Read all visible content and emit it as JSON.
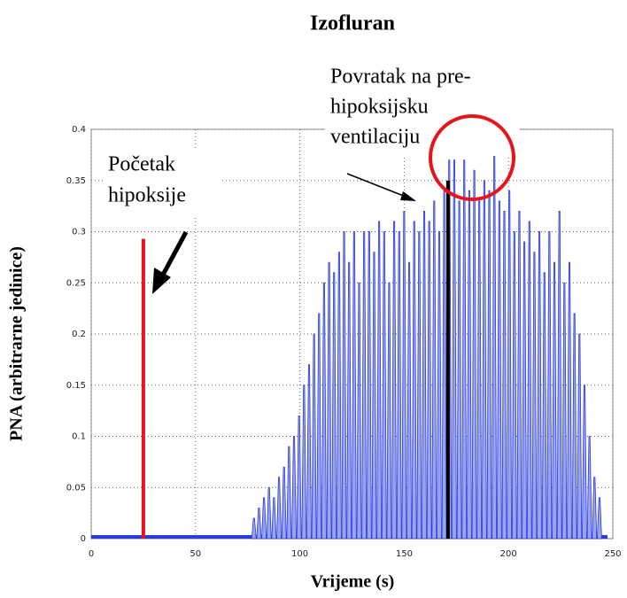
{
  "chart_data": {
    "type": "spikes",
    "title": "Izofluran",
    "xlabel": "Vrijeme (s)",
    "ylabel": "PNA (arbitrarne jedinice)",
    "xlim": [
      0,
      250
    ],
    "ylim": [
      0,
      0.4
    ],
    "xticks": [
      0,
      50,
      100,
      150,
      200,
      250
    ],
    "yticks": [
      0,
      0.05,
      0.1,
      0.15,
      0.2,
      0.25,
      0.3,
      0.35,
      0.4
    ],
    "grid": true,
    "color": "#2a3bd6",
    "x": [
      78,
      80.4,
      82.8,
      85.2,
      87.6,
      90,
      92.4,
      94.8,
      97.2,
      99.6,
      102,
      104.4,
      106.8,
      109.2,
      111.6,
      114,
      116.4,
      118.8,
      121.2,
      123.6,
      126,
      128.4,
      130.8,
      133.2,
      135.6,
      138,
      140.4,
      142.8,
      145.2,
      147.6,
      150,
      152.4,
      154.8,
      157.2,
      159.6,
      162,
      164.4,
      166.8,
      169.2,
      171.6,
      174,
      176.4,
      178.8,
      181.2,
      183.6,
      186,
      188.4,
      190.8,
      193.2,
      195.6,
      198,
      200.4,
      202.8,
      205.2,
      207.6,
      210,
      212.4,
      214.8,
      217.2,
      219.6,
      222,
      224.4,
      226.8,
      229.2,
      231.6,
      234,
      236.4,
      238.8,
      241.2,
      243.6
    ],
    "values": [
      0.02,
      0.03,
      0.04,
      0.05,
      0.04,
      0.06,
      0.07,
      0.09,
      0.1,
      0.12,
      0.15,
      0.17,
      0.2,
      0.22,
      0.25,
      0.27,
      0.26,
      0.28,
      0.3,
      0.27,
      0.3,
      0.25,
      0.3,
      0.3,
      0.28,
      0.31,
      0.3,
      0.25,
      0.31,
      0.3,
      0.32,
      0.27,
      0.31,
      0.3,
      0.32,
      0.31,
      0.33,
      0.3,
      0.34,
      0.37,
      0.37,
      0.33,
      0.37,
      0.34,
      0.36,
      0.33,
      0.35,
      0.34,
      0.38,
      0.33,
      0.32,
      0.34,
      0.3,
      0.32,
      0.29,
      0.31,
      0.28,
      0.3,
      0.26,
      0.3,
      0.27,
      0.32,
      0.25,
      0.27,
      0.22,
      0.2,
      0.15,
      0.1,
      0.06,
      0.04
    ],
    "markers": [
      {
        "x": 25,
        "value": 0.293,
        "color": "#e8141c"
      },
      {
        "x": 171,
        "value": 0.35,
        "color": "#000000"
      }
    ],
    "annotations": [
      {
        "lines": [
          "Početak",
          "hipoksije"
        ]
      },
      {
        "lines": [
          "Povratak na pre-",
          "hipoksijsku",
          "ventilaciju"
        ]
      }
    ]
  }
}
